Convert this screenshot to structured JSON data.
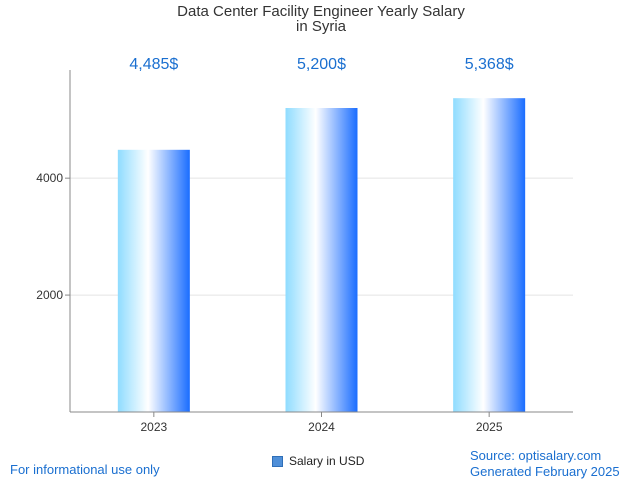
{
  "title_line1": "Data Center Facility Engineer Yearly Salary",
  "title_line2": "in Syria",
  "legend_label": "Salary in USD",
  "footer_left": "For informational use only",
  "footer_source": "Source: optisalary.com",
  "footer_generated": "Generated February 2025",
  "colors": {
    "accent": "#1a6fd0",
    "bar_light": "#8fdcff",
    "bar_dark": "#1a6dff"
  },
  "chart_data": {
    "type": "bar",
    "categories": [
      "2023",
      "2024",
      "2025"
    ],
    "values": [
      4485,
      5200,
      5368
    ],
    "data_labels": [
      "4,485$",
      "5,200$",
      "5,368$"
    ],
    "yticks": [
      2000,
      4000
    ],
    "ylim": [
      0,
      5850
    ],
    "grid": true,
    "legend_position": "bottom"
  }
}
